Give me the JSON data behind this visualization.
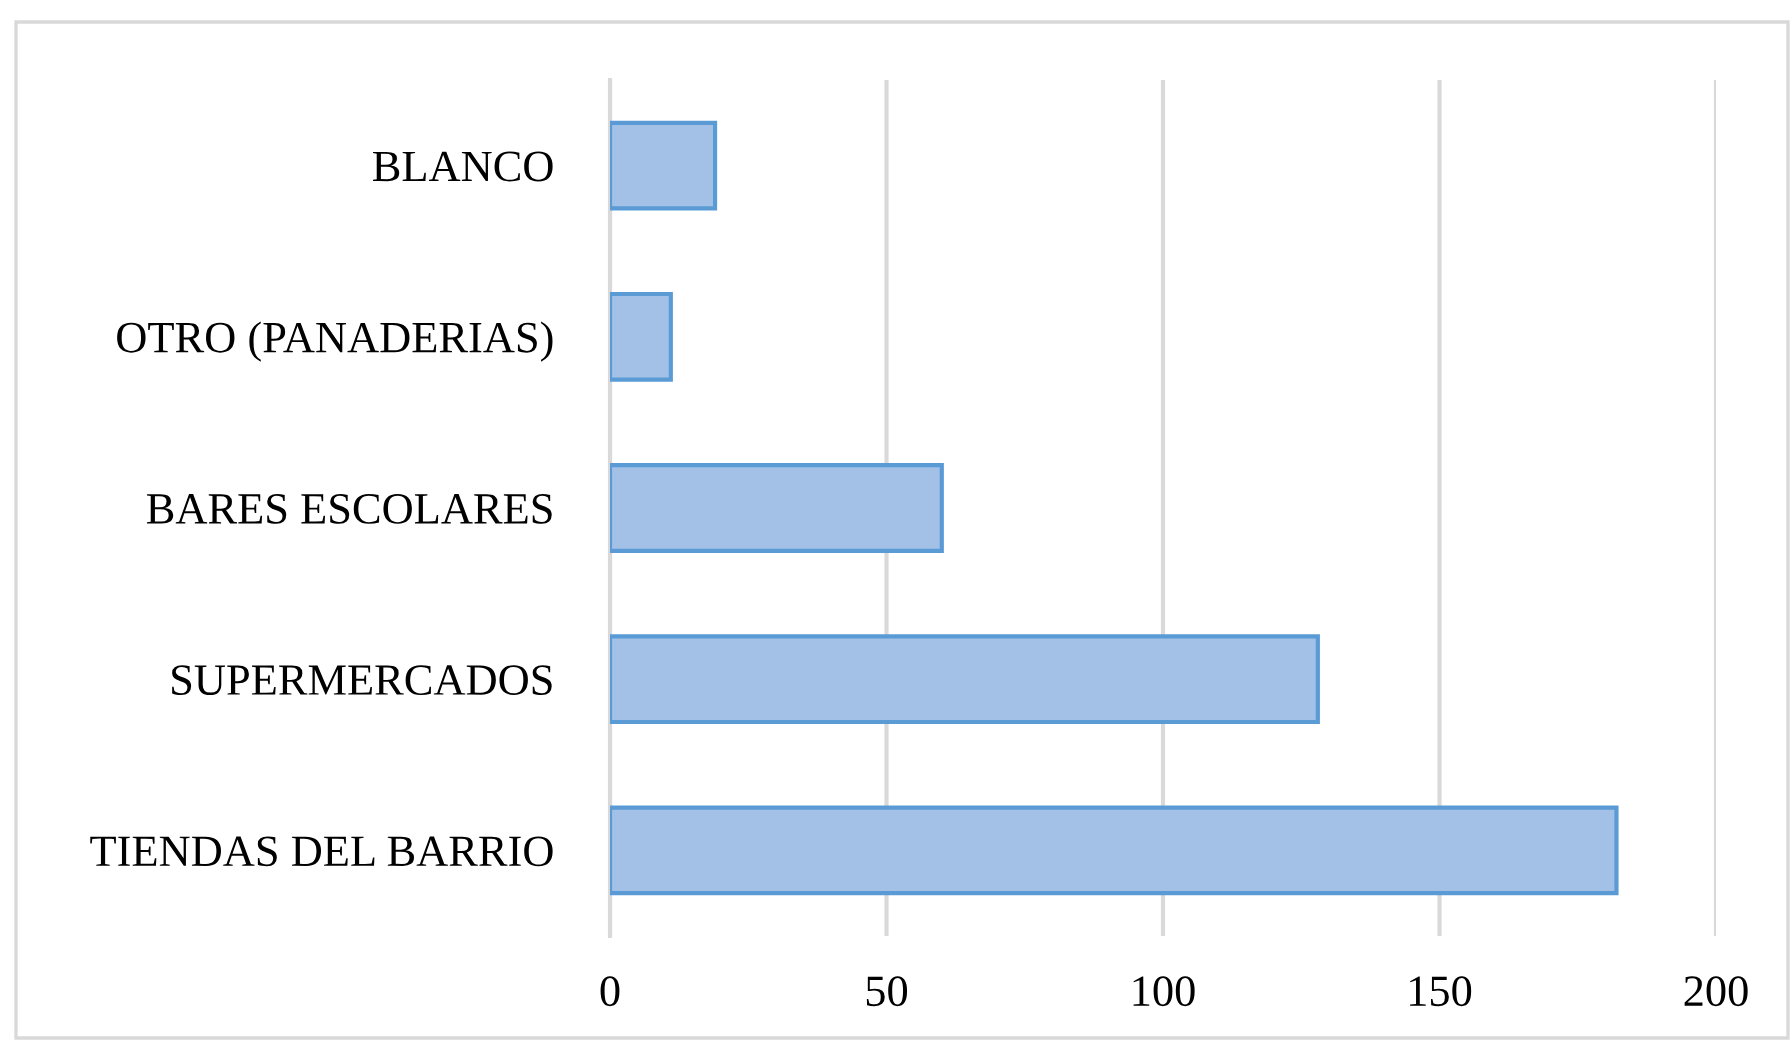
{
  "chart_data": {
    "type": "bar",
    "orientation": "horizontal",
    "categories": [
      "BLANCO",
      "OTRO (PANADERIAS)",
      "BARES ESCOLARES",
      "SUPERMERCADOS",
      "TIENDAS DEL BARRIO"
    ],
    "values": [
      19,
      11,
      60,
      128,
      182
    ],
    "color": "#a3c1e7",
    "xlim": [
      0,
      200
    ],
    "xticks": [
      0,
      50,
      100,
      150,
      200
    ],
    "grid": "x",
    "legend": false
  }
}
